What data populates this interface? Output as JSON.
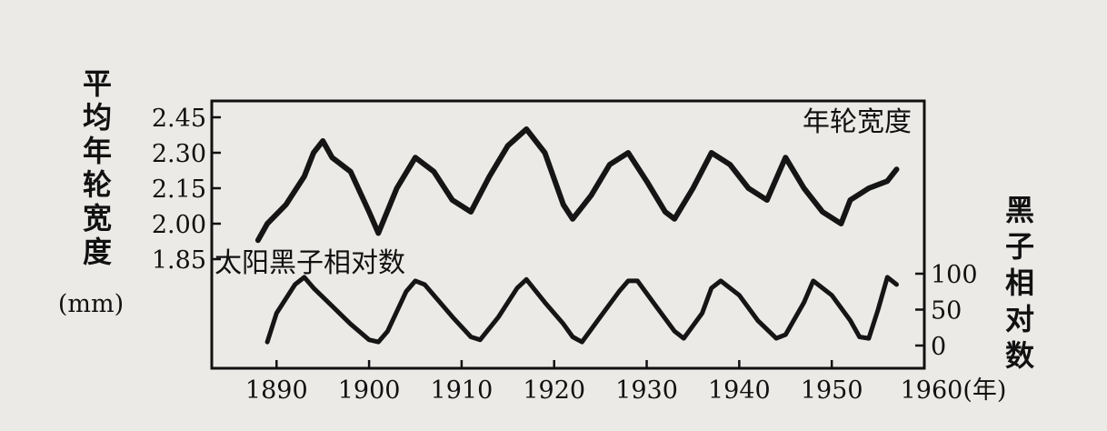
{
  "chart_data": {
    "type": "line",
    "x_axis": {
      "ticks": [
        1890,
        1900,
        1910,
        1920,
        1930,
        1940,
        1950,
        1960
      ],
      "unit": "(年)",
      "xlim": [
        1883,
        1960
      ]
    },
    "left_axis": {
      "label_chars": [
        "平",
        "均",
        "年",
        "轮",
        "宽",
        "度"
      ],
      "unit": "(mm)",
      "ticks": [
        "2.45",
        "2.30",
        "2.15",
        "2.00",
        "1.85"
      ],
      "ylim": [
        1.85,
        2.45
      ]
    },
    "right_axis": {
      "label_chars": [
        "黑",
        "子",
        "相",
        "对",
        "数"
      ],
      "ticks": [
        "100",
        "50",
        "0"
      ],
      "ylim": [
        0,
        100
      ]
    },
    "series": [
      {
        "name": "年轮宽度",
        "axis": "left",
        "x": [
          1888,
          1889,
          1891,
          1893,
          1894,
          1895,
          1896,
          1898,
          1900,
          1901,
          1903,
          1905,
          1907,
          1909,
          1911,
          1913,
          1915,
          1917,
          1919,
          1921,
          1922,
          1924,
          1926,
          1928,
          1930,
          1932,
          1933,
          1935,
          1937,
          1939,
          1941,
          1943,
          1945,
          1947,
          1949,
          1951,
          1952,
          1954,
          1956,
          1957
        ],
        "values": [
          1.93,
          2.0,
          2.08,
          2.2,
          2.3,
          2.35,
          2.28,
          2.22,
          2.05,
          1.96,
          2.15,
          2.28,
          2.22,
          2.1,
          2.05,
          2.2,
          2.33,
          2.4,
          2.3,
          2.08,
          2.02,
          2.12,
          2.25,
          2.3,
          2.18,
          2.05,
          2.02,
          2.15,
          2.3,
          2.25,
          2.15,
          2.1,
          2.28,
          2.15,
          2.05,
          2.0,
          2.1,
          2.15,
          2.18,
          2.23
        ]
      },
      {
        "name": "太阳黑子相对数",
        "axis": "right",
        "x": [
          1889,
          1890,
          1892,
          1893,
          1894,
          1896,
          1898,
          1900,
          1901,
          1902,
          1904,
          1905,
          1906,
          1907,
          1909,
          1911,
          1912,
          1914,
          1916,
          1917,
          1919,
          1921,
          1922,
          1923,
          1925,
          1927,
          1928,
          1929,
          1931,
          1933,
          1934,
          1936,
          1937,
          1938,
          1940,
          1942,
          1944,
          1945,
          1947,
          1948,
          1950,
          1952,
          1953,
          1954,
          1955,
          1956,
          1957
        ],
        "values": [
          5,
          45,
          85,
          95,
          80,
          55,
          30,
          8,
          5,
          20,
          75,
          90,
          85,
          70,
          40,
          12,
          8,
          40,
          80,
          92,
          60,
          30,
          12,
          5,
          40,
          75,
          90,
          90,
          55,
          20,
          10,
          45,
          80,
          90,
          70,
          35,
          10,
          15,
          60,
          90,
          70,
          35,
          12,
          10,
          50,
          95,
          85
        ]
      }
    ],
    "annotations": [
      "年轮宽度",
      "太阳黑子相对数"
    ]
  }
}
